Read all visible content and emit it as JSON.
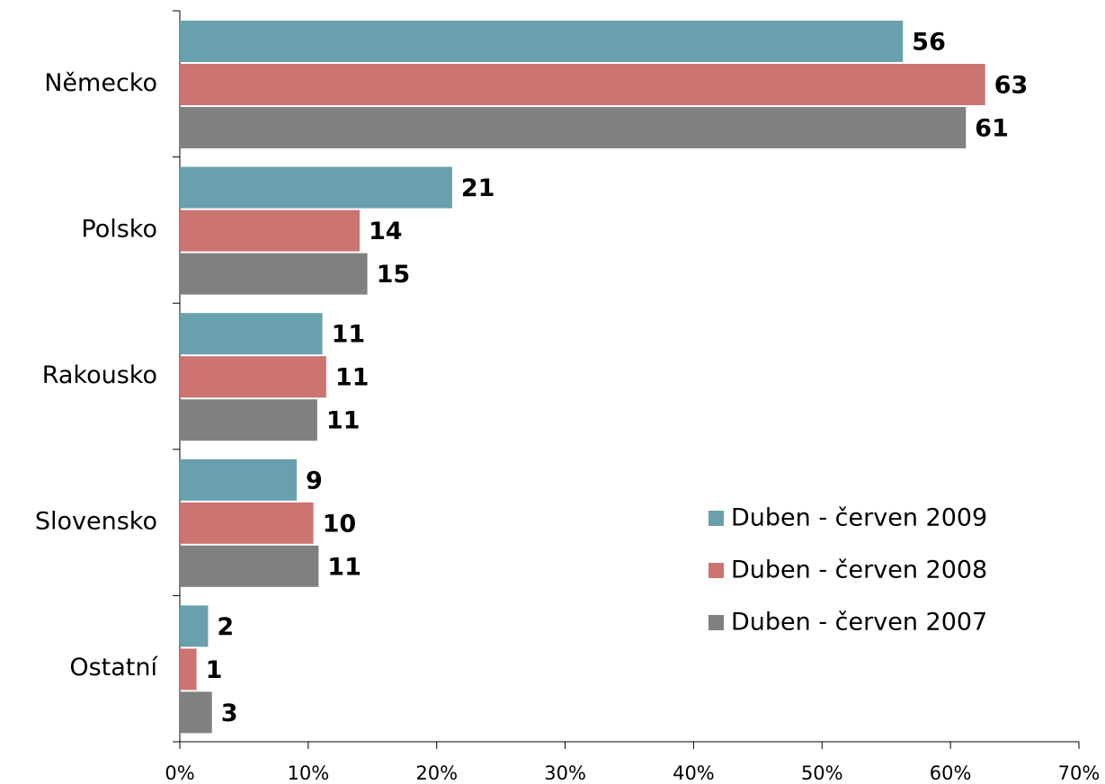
{
  "chart_data": {
    "type": "bar",
    "orientation": "horizontal",
    "categories": [
      "Německo",
      "Polsko",
      "Rakousko",
      "Slovensko",
      "Ostatní"
    ],
    "series": [
      {
        "name": "Duben - červen 2009",
        "color": "#69a0ad",
        "values": [
          56.3,
          21.2,
          11.1,
          9.1,
          2.2
        ],
        "value_labels": [
          "56",
          "21",
          "11",
          "9",
          "2"
        ]
      },
      {
        "name": "Duben - červen 2008",
        "color": "#cc7470",
        "values": [
          62.7,
          14.0,
          11.4,
          10.4,
          1.3
        ],
        "value_labels": [
          "63",
          "14",
          "11",
          "10",
          "1"
        ]
      },
      {
        "name": "Duben - červen 2007",
        "color": "#808080",
        "values": [
          61.2,
          14.6,
          10.7,
          10.8,
          2.5
        ],
        "value_labels": [
          "61",
          "15",
          "11",
          "11",
          "3"
        ]
      }
    ],
    "xlim": [
      0,
      70
    ],
    "xticks": [
      {
        "value": 0,
        "label": "0%"
      },
      {
        "value": 10,
        "label": "10%"
      },
      {
        "value": 20,
        "label": "20%"
      },
      {
        "value": 30,
        "label": "30%"
      },
      {
        "value": 40,
        "label": "40%"
      },
      {
        "value": 50,
        "label": "50%"
      },
      {
        "value": 60,
        "label": "60%"
      },
      {
        "value": 70,
        "label": "70%"
      }
    ],
    "grid": false,
    "legend": "lower right"
  }
}
